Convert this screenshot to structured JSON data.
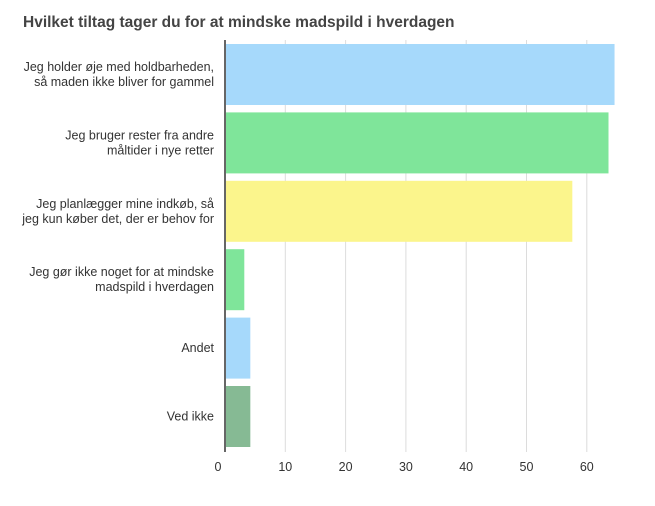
{
  "chart_data": {
    "type": "bar",
    "orientation": "horizontal",
    "title": "Hvilket tiltag tager du for at mindske madspild i hverdagen",
    "xlabel": "",
    "ylabel": "",
    "xlim": [
      0,
      65
    ],
    "grid": true,
    "legend": "none",
    "ticks": [
      "0",
      "10",
      "20",
      "30",
      "40",
      "50",
      "60"
    ],
    "categories": [
      [
        "Jeg holder øje med holdbarheden,",
        "så maden ikke bliver for gammel"
      ],
      [
        "Jeg bruger rester fra andre",
        "måltider i nye retter"
      ],
      [
        "Jeg planlægger mine indkøb, så",
        "jeg kun køber det, der er behov for"
      ],
      [
        "Jeg gør ikke noget for at mindske",
        "madspild i hverdagen"
      ],
      [
        "Andet"
      ],
      [
        "Ved ikke"
      ]
    ],
    "values": [
      64.6,
      63.6,
      57.6,
      3.2,
      4.2,
      4.2
    ],
    "colors": [
      "#a6d9fb",
      "#7fe59a",
      "#fbf58c",
      "#7fe59a",
      "#a6d9fb",
      "#86ba94"
    ]
  }
}
